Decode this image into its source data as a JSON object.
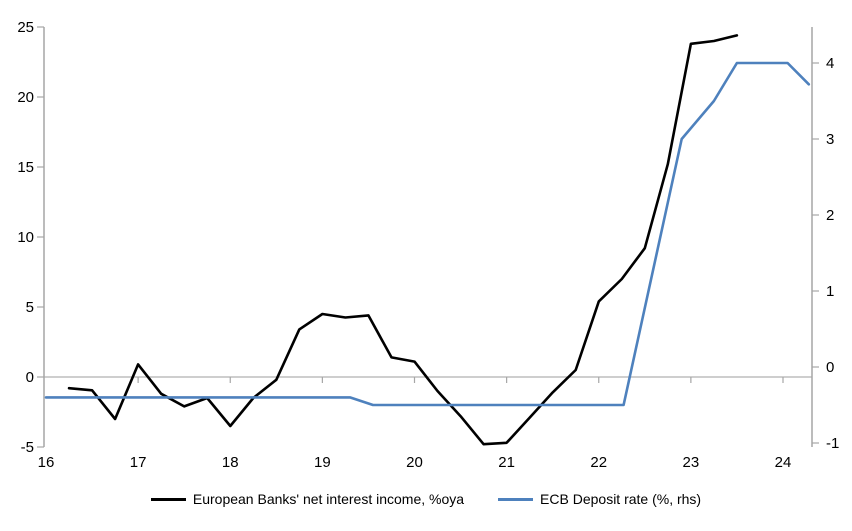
{
  "chart_data": {
    "type": "line",
    "title": "",
    "x_axis": {
      "tick_labels": [
        "16",
        "17",
        "18",
        "19",
        "20",
        "21",
        "22",
        "23",
        "24"
      ],
      "tick_values": [
        16,
        17,
        18,
        19,
        20,
        21,
        22,
        23,
        24
      ],
      "range": [
        16,
        24.33
      ],
      "ticks_on_zero_line": [
        17,
        18,
        19,
        20,
        21,
        22,
        23,
        24
      ]
    },
    "left_axis": {
      "tick_values": [
        -5,
        0,
        5,
        10,
        15,
        20,
        25
      ],
      "range": [
        -5,
        25
      ]
    },
    "right_axis": {
      "tick_values": [
        -1,
        0,
        1,
        2,
        3,
        4
      ],
      "range": [
        -1,
        4.5
      ]
    },
    "grid": "zero-line-only",
    "legend_position": "bottom-center",
    "series": [
      {
        "name": "European Banks' net interest income, %oya",
        "axis": "left",
        "color": "#000000",
        "stroke_width": 2.6,
        "points": [
          [
            16.25,
            -0.8
          ],
          [
            16.5,
            -0.95
          ],
          [
            16.75,
            -3.0
          ],
          [
            17.0,
            0.9
          ],
          [
            17.25,
            -1.2
          ],
          [
            17.5,
            -2.1
          ],
          [
            17.75,
            -1.5
          ],
          [
            18.0,
            -3.5
          ],
          [
            18.25,
            -1.5
          ],
          [
            18.5,
            -0.2
          ],
          [
            18.75,
            3.4
          ],
          [
            19.0,
            4.5
          ],
          [
            19.25,
            4.25
          ],
          [
            19.5,
            4.4
          ],
          [
            19.75,
            1.4
          ],
          [
            20.0,
            1.1
          ],
          [
            20.25,
            -1.0
          ],
          [
            20.5,
            -2.8
          ],
          [
            20.75,
            -4.8
          ],
          [
            21.0,
            -4.7
          ],
          [
            21.25,
            -2.9
          ],
          [
            21.5,
            -1.1
          ],
          [
            21.75,
            0.5
          ],
          [
            22.0,
            5.4
          ],
          [
            22.25,
            7.0
          ],
          [
            22.5,
            9.2
          ],
          [
            22.75,
            15.2
          ],
          [
            23.0,
            23.8
          ],
          [
            23.25,
            24.0
          ],
          [
            23.5,
            24.4
          ]
        ]
      },
      {
        "name": "ECB Deposit rate (%, rhs)",
        "axis": "right",
        "color": "#4e81bd",
        "stroke_width": 2.6,
        "points": [
          [
            16.0,
            -0.4
          ],
          [
            19.3,
            -0.4
          ],
          [
            19.55,
            -0.5
          ],
          [
            22.27,
            -0.5
          ],
          [
            22.9,
            3.0
          ],
          [
            23.25,
            3.5
          ],
          [
            23.5,
            4.0
          ],
          [
            24.05,
            4.0
          ],
          [
            24.28,
            3.72
          ]
        ]
      }
    ],
    "colors": {
      "axis_line": "#a6a6a6",
      "zero_line": "#b0b0b0",
      "tick_mark": "#a6a6a6"
    }
  }
}
